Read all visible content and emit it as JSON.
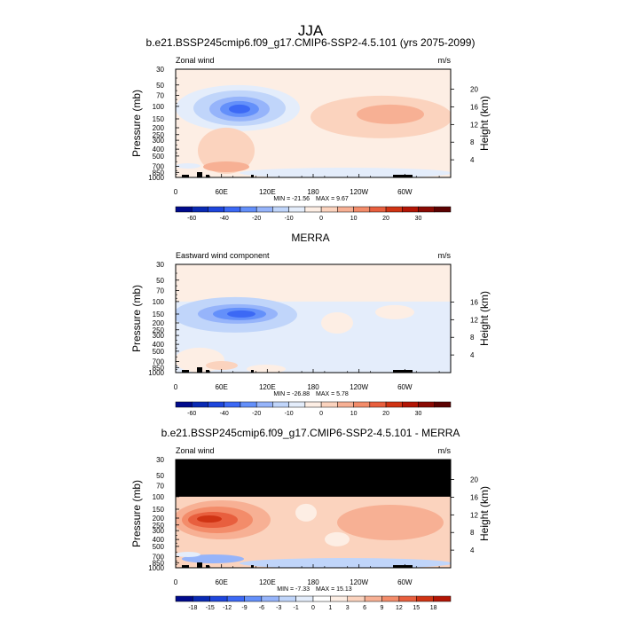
{
  "title": "JJA",
  "chart_data": [
    {
      "type": "heatmap",
      "title": "b.e21.BSSP245cmip6.f09_g17.CMIP6-SSP2-4.5.101 (yrs 2075-2099)",
      "left_label": "Zonal wind",
      "units": "m/s",
      "ylabel": "Pressure (mb)",
      "y2label": "Height (km)",
      "x_ticks": [
        "0",
        "60E",
        "120E",
        "180",
        "120W",
        "60W"
      ],
      "pressure_ticks": [
        "30",
        "50",
        "70",
        "100",
        "150",
        "200",
        "250",
        "300",
        "400",
        "500",
        "700",
        "850",
        "1000"
      ],
      "height_ticks": [
        "20",
        "16",
        "12",
        "8",
        "4"
      ],
      "min_label": "MIN = -21.56",
      "max_label": "MAX =   9.67",
      "colorbar_labels": [
        "-60",
        "-40",
        "-20",
        "-10",
        "0",
        "10",
        "20",
        "30"
      ],
      "colorbar_colors": [
        "#000a8c",
        "#0a2ab4",
        "#1e46dc",
        "#3c69f5",
        "#6490fa",
        "#96b4fa",
        "#c0d5fa",
        "#e4edfb",
        "#fdeee4",
        "#fbd3be",
        "#f7b094",
        "#f38c6a",
        "#e85f3e",
        "#d03414",
        "#b31505",
        "#8a0a04",
        "#5c0202"
      ]
    },
    {
      "type": "heatmap",
      "title": "MERRA",
      "left_label": "Eastward wind component",
      "units": "m/s",
      "ylabel": "Pressure (mb)",
      "y2label": "Height (km)",
      "x_ticks": [
        "0",
        "60E",
        "120E",
        "180",
        "120W",
        "60W"
      ],
      "pressure_ticks": [
        "30",
        "50",
        "70",
        "100",
        "150",
        "200",
        "250",
        "300",
        "400",
        "500",
        "700",
        "850",
        "1000"
      ],
      "height_ticks": [
        "16",
        "12",
        "8",
        "4"
      ],
      "min_label": "MIN = -26.88",
      "max_label": "MAX =   5.78",
      "colorbar_labels": [
        "-60",
        "-40",
        "-20",
        "-10",
        "0",
        "10",
        "20",
        "30"
      ],
      "colorbar_colors": [
        "#000a8c",
        "#0a2ab4",
        "#1e46dc",
        "#3c69f5",
        "#6490fa",
        "#96b4fa",
        "#c0d5fa",
        "#e4edfb",
        "#fdeee4",
        "#fbd3be",
        "#f7b094",
        "#f38c6a",
        "#e85f3e",
        "#d03414",
        "#b31505",
        "#8a0a04",
        "#5c0202"
      ]
    },
    {
      "type": "heatmap",
      "title": "b.e21.BSSP245cmip6.f09_g17.CMIP6-SSP2-4.5.101 - MERRA",
      "left_label": "Zonal wind",
      "units": "m/s",
      "ylabel": "Pressure (mb)",
      "y2label": "Height (km)",
      "x_ticks": [
        "0",
        "60E",
        "120E",
        "180",
        "120W",
        "60W"
      ],
      "pressure_ticks": [
        "30",
        "50",
        "70",
        "100",
        "150",
        "200",
        "250",
        "300",
        "400",
        "500",
        "700",
        "850",
        "1000"
      ],
      "height_ticks": [
        "20",
        "16",
        "12",
        "8",
        "4"
      ],
      "min_label": "MIN =  -7.33",
      "max_label": "MAX =  15.13",
      "colorbar_labels": [
        "-18",
        "-15",
        "-12",
        "-9",
        "-6",
        "-3",
        "-1",
        "0",
        "1",
        "3",
        "6",
        "9",
        "12",
        "15",
        "18"
      ],
      "colorbar_colors": [
        "#000a8c",
        "#0a2ab4",
        "#1e46dc",
        "#3c69f5",
        "#6490fa",
        "#96b4fa",
        "#c0d5fa",
        "#e4edfb",
        "#ffffff",
        "#fdeee4",
        "#fbd3be",
        "#f7b094",
        "#f38c6a",
        "#e85f3e",
        "#d03414",
        "#b31505"
      ]
    }
  ]
}
